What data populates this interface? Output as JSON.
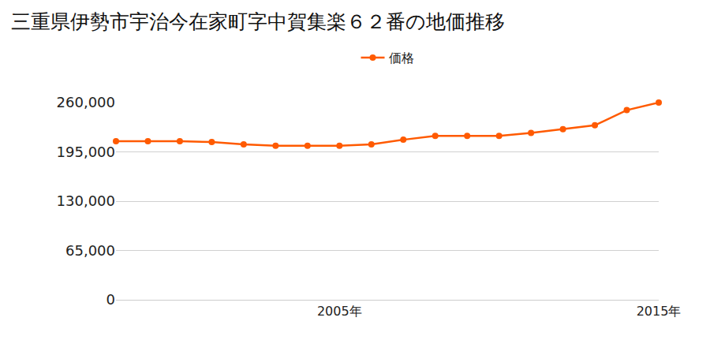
{
  "chart_data": {
    "type": "line",
    "title": "三重県伊勢市宇治今在家町字中賀集楽６２番の地価推移",
    "x": [
      1998,
      1999,
      2000,
      2001,
      2002,
      2003,
      2004,
      2005,
      2006,
      2007,
      2008,
      2009,
      2010,
      2011,
      2012,
      2013,
      2014,
      2015
    ],
    "series": [
      {
        "name": "価格",
        "color": "#ff5a00",
        "marker": "circle",
        "values": [
          209000,
          209000,
          209000,
          208000,
          205000,
          203000,
          203000,
          203000,
          205000,
          211000,
          216000,
          216000,
          216000,
          220000,
          225000,
          230000,
          250000,
          260000
        ]
      }
    ],
    "xlim": [
      1998,
      2015
    ],
    "xticks": [
      {
        "value": 2005,
        "label": "2005年"
      },
      {
        "value": 2015,
        "label": "2015年"
      }
    ],
    "ylim": [
      0,
      260000
    ],
    "yticks": [
      0,
      {
        "value": 65000,
        "label": "65,000"
      },
      {
        "value": 130000,
        "label": "130,000"
      },
      {
        "value": 195000,
        "label": "195,000"
      },
      {
        "value": 260000,
        "label": "260,000"
      }
    ],
    "grid": true,
    "legend": "top"
  }
}
